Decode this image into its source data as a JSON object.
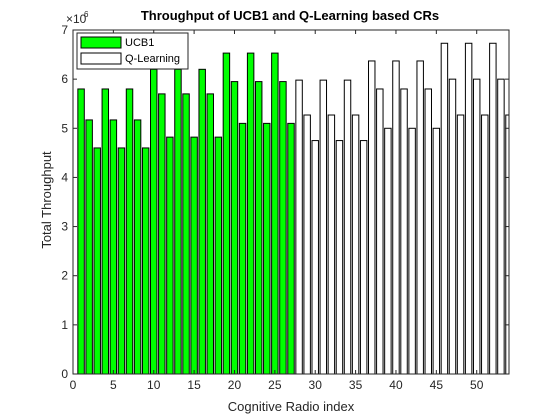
{
  "chart_data": {
    "type": "bar",
    "title": "Throughput of UCB1 and Q-Learning based CRs",
    "xlabel": "Cognitive Radio index",
    "ylabel": "Total Throughput",
    "y_exponent_label": "×10",
    "y_exponent_power": "6",
    "xlim": [
      0,
      54
    ],
    "ylim": [
      0,
      7
    ],
    "xticks": [
      0,
      5,
      10,
      15,
      20,
      25,
      30,
      35,
      40,
      45,
      50
    ],
    "yticks": [
      0,
      1,
      2,
      3,
      4,
      5,
      6,
      7
    ],
    "grid": false,
    "legend_position": "top-left",
    "series": [
      {
        "name": "UCB1",
        "color": "#00ff00",
        "x": [
          1,
          2,
          3,
          4,
          5,
          6,
          7,
          8,
          9,
          10,
          11,
          12,
          13,
          14,
          15,
          16,
          17,
          18,
          19,
          20,
          21,
          22,
          23,
          24,
          25,
          26,
          27
        ],
        "values": [
          5.8,
          5.17,
          4.6,
          5.8,
          5.17,
          4.6,
          5.8,
          5.17,
          4.6,
          6.2,
          5.7,
          4.82,
          6.2,
          5.7,
          4.82,
          6.2,
          5.7,
          4.82,
          6.53,
          5.95,
          5.1,
          6.53,
          5.95,
          5.1,
          6.53,
          5.95,
          5.1
        ]
      },
      {
        "name": "Q-Learning",
        "color": "#ffffff",
        "x": [
          28,
          29,
          30,
          31,
          32,
          33,
          34,
          35,
          36,
          37,
          38,
          39,
          40,
          41,
          42,
          43,
          44,
          45,
          46,
          47,
          48,
          49,
          50,
          51,
          52,
          53,
          54
        ],
        "values": [
          5.98,
          5.27,
          4.75,
          5.98,
          5.27,
          4.75,
          5.98,
          5.27,
          4.75,
          6.37,
          5.8,
          5.0,
          6.37,
          5.8,
          5.0,
          6.37,
          5.8,
          5.0,
          6.73,
          6.0,
          5.27,
          6.73,
          6.0,
          5.27,
          6.73,
          6.0,
          5.27
        ]
      }
    ]
  }
}
